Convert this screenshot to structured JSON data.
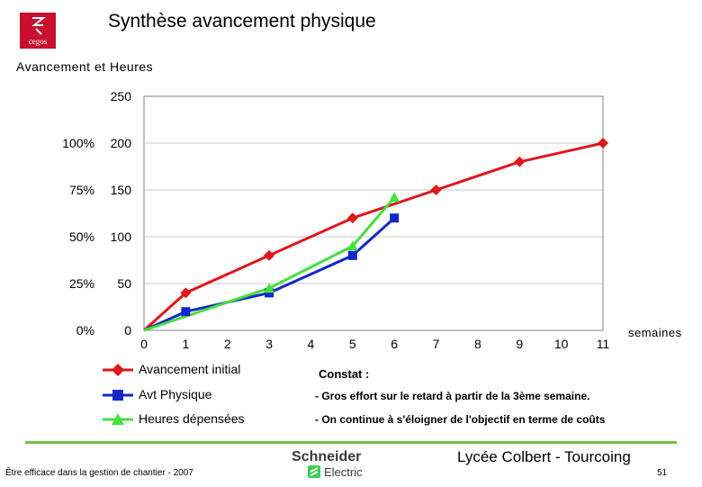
{
  "header": {
    "title": "Synthèse avancement physique",
    "logo_text": "cegos"
  },
  "chart_data": {
    "type": "line",
    "title": "Avancement et Heures",
    "x_unit": "semaines",
    "x_ticks": [
      "0",
      "1",
      "2",
      "3",
      "4",
      "5",
      "6",
      "7",
      "8",
      "9",
      "10",
      "11"
    ],
    "y_ticks": [
      "250",
      "200",
      "150",
      "100",
      "50",
      "0"
    ],
    "y2_ticks": [
      "100%",
      "75%",
      "50%",
      "25%",
      "0%"
    ],
    "ylim": [
      0,
      250
    ],
    "xlim": [
      0,
      11
    ],
    "series": [
      {
        "name": "Avancement initial",
        "color": "#e0161a",
        "marker": "diamond",
        "x": [
          0,
          1,
          3,
          5,
          7,
          9,
          11
        ],
        "y": [
          0,
          40,
          80,
          120,
          150,
          180,
          200
        ]
      },
      {
        "name": "Avt Physique",
        "color": "#1428c8",
        "marker": "square",
        "x": [
          0,
          1,
          3,
          5,
          6
        ],
        "y": [
          0,
          20,
          40,
          80,
          120
        ]
      },
      {
        "name": "Heures dépensées",
        "color": "#44e03c",
        "marker": "triangle",
        "x": [
          0,
          3,
          5,
          6
        ],
        "y": [
          0,
          45,
          90,
          142
        ]
      }
    ]
  },
  "constat": {
    "title": "Constat :",
    "lines": [
      "- Gros effort sur le retard à partir de la 3ème semaine.",
      "- On continue à s'éloigner de l'objectif en terme de coûts"
    ]
  },
  "footer": {
    "school": "Lycée Colbert - Tourcoing",
    "course": "Être efficace dans la gestion de chantier - 2007",
    "page": "51",
    "partner_logo": "Schneider Electric"
  },
  "colors": {
    "accent_green": "#6fbf44",
    "brand_red": "#c8102e"
  }
}
